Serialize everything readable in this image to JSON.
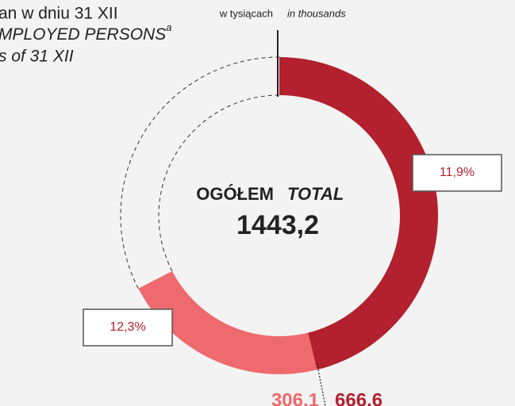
{
  "chart_data": {
    "type": "donut",
    "title_lines": [
      "an w dniu 31 XII",
      "MPLOYED PERSONS",
      "s of 31 XII"
    ],
    "title_superscript": "a",
    "unit_pl": "w tysiącach",
    "unit_en": "in thousands",
    "center_label_pl": "OGÓŁEM",
    "center_label_en": "TOTAL",
    "total": 1443.2,
    "total_label": "1443,2",
    "values": [
      666.6,
      306.1
    ],
    "value_labels": [
      "666,6",
      "306,1"
    ],
    "shares": [
      11.9,
      12.3
    ],
    "share_labels": [
      "11,9%",
      "12,3%"
    ],
    "colors": [
      "#b3202e",
      "#ee6a6e"
    ]
  }
}
